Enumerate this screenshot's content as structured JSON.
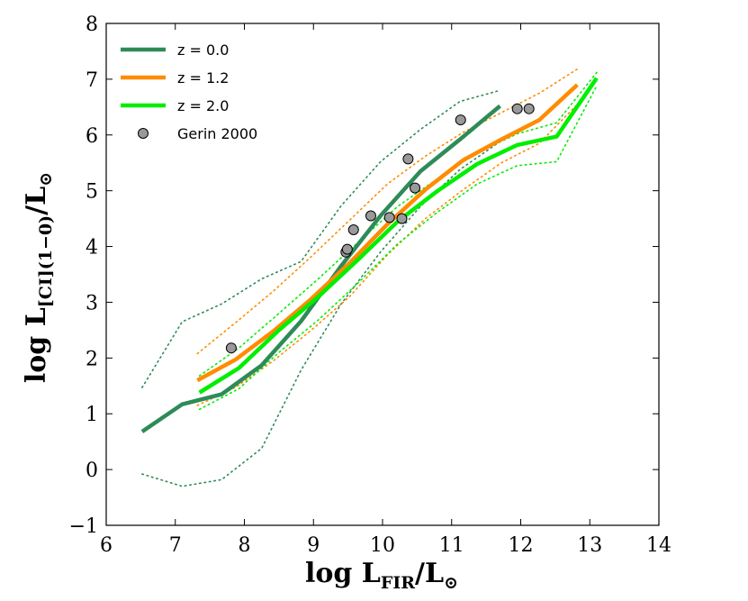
{
  "chart_data": {
    "type": "line",
    "title": "",
    "xlabel": {
      "main": "log L",
      "sub": "FIR",
      "tail": "/L",
      "sun": "⊙"
    },
    "ylabel": {
      "main": "log L",
      "sub": "[CI](1−0)",
      "tail": "/L",
      "sun": "⊙"
    },
    "xlim": [
      6,
      14
    ],
    "ylim": [
      -1,
      8
    ],
    "xticks": [
      "6",
      "7",
      "8",
      "9",
      "10",
      "11",
      "12",
      "13",
      "14"
    ],
    "yticks": [
      "−1",
      "0",
      "1",
      "2",
      "3",
      "4",
      "5",
      "6",
      "7",
      "8"
    ],
    "grid": false,
    "legend_position": "top-left",
    "series": [
      {
        "name": "z = 0.0",
        "color": "#2e8b57",
        "style": "solid",
        "x": [
          6.52,
          7.1,
          7.67,
          8.25,
          8.82,
          9.4,
          9.97,
          10.55,
          11.12,
          11.7
        ],
        "y": [
          0.68,
          1.17,
          1.35,
          1.87,
          2.66,
          3.65,
          4.55,
          5.35,
          5.92,
          6.52
        ]
      },
      {
        "name": "z = 1.2",
        "color": "#ff8c00",
        "style": "solid",
        "x": [
          7.32,
          7.87,
          8.42,
          8.97,
          9.52,
          10.07,
          10.62,
          11.17,
          11.72,
          12.27,
          12.82
        ],
        "y": [
          1.6,
          1.97,
          2.48,
          3.06,
          3.7,
          4.4,
          5.02,
          5.55,
          5.92,
          6.27,
          6.9
        ]
      },
      {
        "name": "z = 2.0",
        "color": "#00ee00",
        "style": "solid",
        "x": [
          7.35,
          7.92,
          8.5,
          9.07,
          9.65,
          10.22,
          10.8,
          11.37,
          11.95,
          12.52,
          13.1
        ],
        "y": [
          1.38,
          1.82,
          2.5,
          3.1,
          3.77,
          4.45,
          5.0,
          5.48,
          5.82,
          5.97,
          7.02
        ]
      }
    ],
    "scatter": {
      "name": "Gerin 2000",
      "color": "#999999",
      "x": [
        7.81,
        9.47,
        9.49,
        9.58,
        9.83,
        10.1,
        10.28,
        10.37,
        10.47,
        11.13,
        11.95,
        12.12
      ],
      "y": [
        2.18,
        3.9,
        3.95,
        4.3,
        4.55,
        4.52,
        4.5,
        5.57,
        5.05,
        6.27,
        6.47,
        6.47
      ]
    },
    "bounds": [
      {
        "series": "z = 0.0",
        "color": "#2e8b57",
        "x": [
          6.52,
          7.1,
          7.67,
          8.25,
          8.82,
          9.4,
          9.97,
          10.55,
          11.12,
          11.7
        ],
        "y": [
          1.47,
          2.65,
          2.97,
          3.42,
          3.73,
          4.73,
          5.52,
          6.1,
          6.6,
          6.8
        ]
      },
      {
        "series": "z = 0.0",
        "color": "#2e8b57",
        "x": [
          6.52,
          7.1,
          7.67,
          8.25,
          8.82,
          9.4,
          9.97,
          10.55,
          11.12,
          11.7
        ],
        "y": [
          -0.08,
          -0.3,
          -0.18,
          0.38,
          1.78,
          2.97,
          3.9,
          4.72,
          5.38,
          5.88
        ]
      },
      {
        "series": "z = 1.2",
        "color": "#ff8c00",
        "x": [
          7.32,
          7.87,
          8.42,
          8.97,
          9.52,
          10.07,
          10.62,
          11.17,
          11.72,
          12.27,
          12.82
        ],
        "y": [
          2.08,
          2.63,
          3.2,
          3.82,
          4.47,
          5.12,
          5.62,
          6.05,
          6.4,
          6.75,
          7.18
        ]
      },
      {
        "series": "z = 1.2",
        "color": "#ff8c00",
        "x": [
          7.32,
          7.87,
          8.42,
          8.97,
          9.52,
          10.07,
          10.62,
          11.17,
          11.72,
          12.27,
          12.82
        ],
        "y": [
          1.15,
          1.47,
          1.95,
          2.5,
          3.1,
          3.85,
          4.5,
          5.02,
          5.5,
          5.85,
          6.55
        ]
      },
      {
        "series": "z = 2.0",
        "color": "#00ee00",
        "x": [
          7.35,
          7.92,
          8.5,
          9.07,
          9.65,
          10.22,
          10.8,
          11.37,
          11.95,
          12.52,
          13.1
        ],
        "y": [
          1.68,
          2.18,
          2.8,
          3.42,
          4.08,
          4.72,
          5.22,
          5.68,
          6.02,
          6.22,
          7.12
        ]
      },
      {
        "series": "z = 2.0",
        "color": "#00ee00",
        "x": [
          7.35,
          7.92,
          8.5,
          9.07,
          9.65,
          10.22,
          10.8,
          11.37,
          11.95,
          12.52,
          13.1
        ],
        "y": [
          1.08,
          1.45,
          2.1,
          2.68,
          3.35,
          4.05,
          4.62,
          5.12,
          5.45,
          5.52,
          6.88
        ]
      }
    ]
  }
}
